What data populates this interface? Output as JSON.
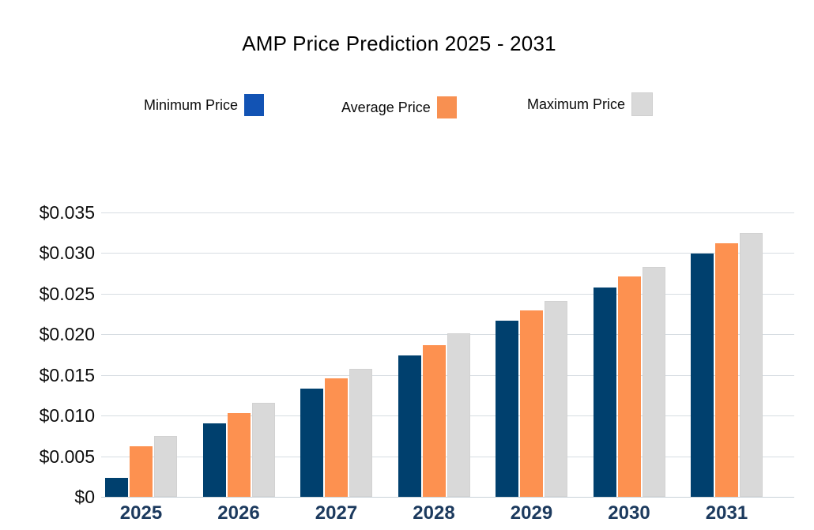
{
  "chart_data": {
    "type": "bar",
    "title": "AMP Price Prediction 2025 - 2031",
    "xlabel": "",
    "ylabel": "",
    "categories": [
      "2025",
      "2026",
      "2027",
      "2028",
      "2029",
      "2030",
      "2031"
    ],
    "series": [
      {
        "name": "Minimum Price",
        "color": "#00406e",
        "legend_color": "#1253b4",
        "values": [
          0.0023,
          0.009,
          0.0133,
          0.0174,
          0.0217,
          0.0258,
          0.0299
        ]
      },
      {
        "name": "Average Price",
        "color": "#fd9150",
        "legend_color": "#f89051",
        "values": [
          0.0062,
          0.0103,
          0.0146,
          0.0187,
          0.0229,
          0.0271,
          0.0312
        ]
      },
      {
        "name": "Maximum Price",
        "color": "#d9d9d9",
        "legend_color": "#d9d9d9",
        "values": [
          0.0075,
          0.0116,
          0.0158,
          0.0201,
          0.0241,
          0.0283,
          0.0325
        ]
      }
    ],
    "ylim": [
      0,
      0.035
    ],
    "ytick_step": 0.005,
    "ytick_labels": [
      "$0.035",
      "$0.030",
      "$0.025",
      "$0.020",
      "$0.015",
      "$0.010",
      "$0.005",
      "$0"
    ],
    "grid": "horizontal",
    "legend_position": "top",
    "currency_prefix": "$",
    "colors": {
      "gridline": "#d7dde2",
      "x_label_text": "#1c3a5e",
      "y_label_text": "#0d0d0d",
      "title_text": "#000000"
    }
  }
}
